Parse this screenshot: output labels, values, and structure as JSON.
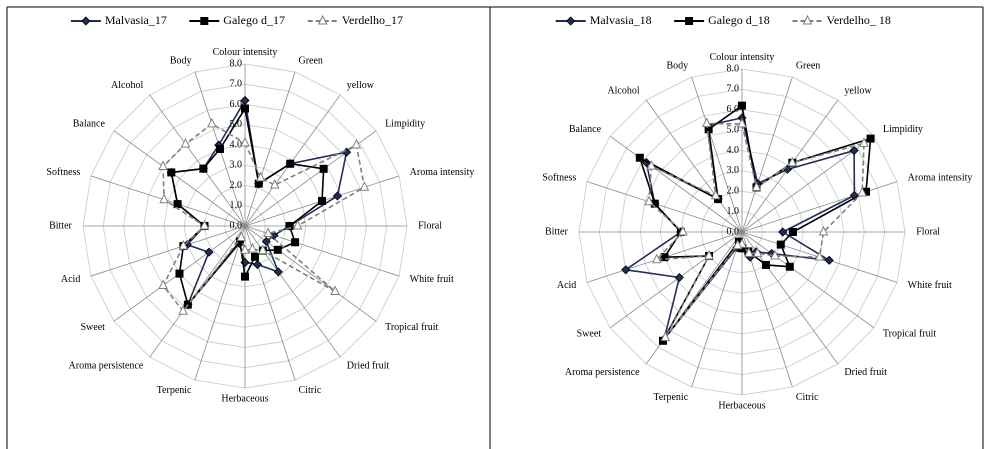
{
  "chart_data": [
    {
      "type": "radar",
      "categories": [
        "Colour intensity",
        "Green",
        "yellow",
        "Limpidity",
        "Aroma intensity",
        "Floral",
        "White fruit",
        "Tropical fruit",
        "Dried fruit",
        "Citric",
        "Herbaceous",
        "Terpenic",
        "Aroma persistence",
        "Sweet",
        "Acid",
        "Bitter",
        "Softness",
        "Balance",
        "Alcohol",
        "Body"
      ],
      "rlim": [
        0,
        8
      ],
      "rticks": [
        {
          "value": 0,
          "label": "0.0"
        },
        {
          "value": 1,
          "label": "1.0"
        },
        {
          "value": 2,
          "label": "2.0"
        },
        {
          "value": 3,
          "label": "3.0"
        },
        {
          "value": 4,
          "label": "4.0"
        },
        {
          "value": 5,
          "label": "5.0"
        },
        {
          "value": 6,
          "label": "6.0"
        },
        {
          "value": 7,
          "label": "7.0"
        },
        {
          "value": 8,
          "label": "8.0"
        }
      ],
      "grid": true,
      "legend": "top",
      "series": [
        {
          "name": "Malvasia_17",
          "color": "#1f2f5a",
          "marker": "diamond",
          "dashed": false,
          "values": [
            6.2,
            2.2,
            3.8,
            6.2,
            4.8,
            2.2,
            1.5,
            1.3,
            2.8,
            2.0,
            1.8,
            0.9,
            4.8,
            2.2,
            3.0,
            2.0,
            3.5,
            4.5,
            3.5,
            4.2
          ]
        },
        {
          "name": "Galego d_17",
          "color": "#000000",
          "marker": "square",
          "dashed": false,
          "values": [
            5.8,
            2.2,
            3.8,
            4.8,
            4.0,
            2.2,
            2.6,
            2.0,
            1.5,
            1.6,
            2.5,
            0.8,
            4.8,
            4.0,
            3.2,
            2.0,
            3.5,
            4.5,
            3.5,
            4.0
          ]
        },
        {
          "name": "Verdelho_17",
          "color": "#808080",
          "marker": "triangle",
          "dashed": true,
          "values": [
            4.1,
            2.5,
            2.5,
            6.8,
            6.2,
            2.6,
            1.2,
            5.5,
            1.5,
            1.2,
            1.2,
            0.6,
            5.2,
            5.0,
            3.2,
            2.0,
            4.2,
            5.0,
            5.0,
            5.3
          ]
        }
      ]
    },
    {
      "type": "radar",
      "categories": [
        "Colour intensity",
        "Green",
        "yellow",
        "Limpidity",
        "Aroma intensity",
        "Floral",
        "White fruit",
        "Tropical fruit",
        "Dried fruit",
        "Citric",
        "Herbaceous",
        "Terpenic",
        "Aroma persistence",
        "Sweet",
        "Acid",
        "Bitter",
        "Softness",
        "Balance",
        "Alcohol",
        "Body"
      ],
      "rlim": [
        0,
        8
      ],
      "rticks": [
        {
          "value": 0,
          "label": "0.0"
        },
        {
          "value": 1,
          "label": "1.0"
        },
        {
          "value": 2,
          "label": "2.0"
        },
        {
          "value": 3,
          "label": "3.0"
        },
        {
          "value": 4,
          "label": "4.0"
        },
        {
          "value": 5,
          "label": "5.0"
        },
        {
          "value": 6,
          "label": "6.0"
        },
        {
          "value": 7,
          "label": "7.0"
        },
        {
          "value": 8,
          "label": "8.0"
        }
      ],
      "grid": true,
      "legend": "top",
      "series": [
        {
          "name": "Malvasia_18",
          "color": "#1f2f5a",
          "marker": "diamond",
          "dashed": false,
          "values": [
            5.6,
            2.5,
            3.8,
            6.8,
            5.8,
            2.0,
            4.5,
            1.8,
            1.2,
            1.3,
            0.8,
            0.8,
            6.5,
            3.8,
            6.0,
            3.0,
            4.5,
            5.8,
            2.0,
            5.5
          ]
        },
        {
          "name": "Galego d_18",
          "color": "#000000",
          "marker": "square",
          "dashed": false,
          "values": [
            6.2,
            2.3,
            4.2,
            7.8,
            6.4,
            2.5,
            2.0,
            2.9,
            2.0,
            1.0,
            0.8,
            0.5,
            6.6,
            2.0,
            4.0,
            3.0,
            4.5,
            6.2,
            2.0,
            5.3
          ]
        },
        {
          "name": "Verdelho_ 18",
          "color": "#808080",
          "marker": "triangle",
          "dashed": true,
          "values": [
            5.3,
            2.3,
            4.2,
            7.4,
            6.2,
            4.0,
            4.0,
            2.0,
            1.3,
            1.1,
            0.6,
            0.7,
            6.4,
            2.0,
            4.4,
            2.9,
            4.8,
            5.5,
            2.2,
            5.6
          ]
        }
      ]
    }
  ]
}
